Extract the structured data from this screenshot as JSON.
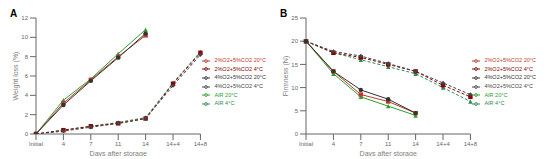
{
  "chart_data": [
    {
      "type": "line",
      "title": "A",
      "x_label": "Days after storage",
      "y_label": "Weight loss (%)",
      "categories": [
        "Initial",
        "4",
        "7",
        "11",
        "14",
        "14+4",
        "14+8"
      ],
      "ylim": [
        0,
        12
      ],
      "yticks": [
        0,
        2,
        4,
        6,
        8,
        10,
        12
      ],
      "legend": "right",
      "grid": false,
      "series": [
        {
          "name": "AIR 4°C",
          "color": "#2e8b57",
          "marker": "triangle",
          "line_style": "dashed",
          "values": [
            0,
            0.4,
            0.8,
            1.2,
            1.7,
            5.3,
            8.5
          ]
        },
        {
          "name": "2%O2+5%CO2 4°C",
          "color": "#8b0000",
          "marker": "square",
          "line_style": "dashed",
          "values": [
            0,
            0.4,
            0.8,
            1.1,
            1.6,
            5.2,
            8.4
          ]
        },
        {
          "name": "4%O2+5%CO2 4°C",
          "color": "#444444",
          "marker": "diamond",
          "line_style": "dashed",
          "values": [
            0,
            0.3,
            0.7,
            1.1,
            1.6,
            5.0,
            8.2
          ]
        },
        {
          "name": "AIR 20°C",
          "color": "#2ca02c",
          "marker": "triangle",
          "line_style": "solid",
          "values": [
            0,
            3.5,
            5.7,
            8.3,
            10.8,
            null,
            null
          ]
        },
        {
          "name": "2%O2+5%CO2 20°C",
          "color": "#c0392b",
          "marker": "square",
          "line_style": "solid",
          "values": [
            0,
            3.2,
            5.6,
            8.0,
            10.2,
            null,
            null
          ]
        },
        {
          "name": "4%O2+5%CO2 20°C",
          "color": "#333333",
          "marker": "circle",
          "line_style": "solid",
          "values": [
            0,
            3.0,
            5.5,
            7.9,
            10.4,
            null,
            null
          ]
        }
      ]
    },
    {
      "type": "line",
      "title": "B",
      "x_label": "Days after storage",
      "y_label": "Firmness (N)",
      "categories": [
        "Initial",
        "4",
        "7",
        "11",
        "14",
        "14+4",
        "14+8"
      ],
      "ylim": [
        0,
        25
      ],
      "yticks": [
        0,
        5,
        10,
        15,
        20,
        25
      ],
      "legend": "right",
      "grid": false,
      "series": [
        {
          "name": "AIR 4°C",
          "color": "#2e8b57",
          "marker": "triangle",
          "line_style": "dashed",
          "values": [
            20,
            17.5,
            16,
            14.5,
            13,
            10,
            7
          ]
        },
        {
          "name": "2%O2+5%CO2 4°C",
          "color": "#8b0000",
          "marker": "square",
          "line_style": "dashed",
          "values": [
            20,
            17.5,
            16.5,
            15,
            13.5,
            10.5,
            8
          ]
        },
        {
          "name": "4%O2+5%CO2 4°C",
          "color": "#444444",
          "marker": "diamond",
          "line_style": "dashed",
          "values": [
            20,
            17.8,
            16.8,
            15.2,
            13.5,
            11,
            8.5
          ]
        },
        {
          "name": "AIR 20°C",
          "color": "#2ca02c",
          "marker": "triangle",
          "line_style": "solid",
          "values": [
            20,
            13,
            8,
            6,
            4,
            null,
            null
          ]
        },
        {
          "name": "2%O2+5%CO2 20°C",
          "color": "#c0392b",
          "marker": "square",
          "line_style": "solid",
          "values": [
            20,
            13.5,
            8.5,
            7,
            4.5,
            null,
            null
          ]
        },
        {
          "name": "4%O2+5%CO2 20°C",
          "color": "#333333",
          "marker": "circle",
          "line_style": "solid",
          "values": [
            20,
            13.5,
            9.5,
            7.5,
            4.5,
            null,
            null
          ]
        }
      ]
    }
  ]
}
